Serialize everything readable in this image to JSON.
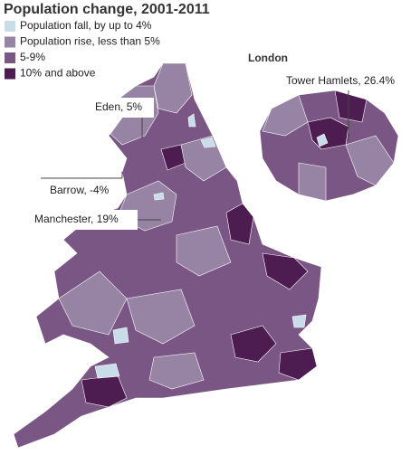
{
  "title": "Population change, 2001-2011",
  "legend": [
    {
      "label": "Population fall, by up to 4%",
      "color": "#c8dce9"
    },
    {
      "label": "Population rise, less than 5%",
      "color": "#9783a3"
    },
    {
      "label": "5-9%",
      "color": "#7a5685"
    },
    {
      "label": "10% and above",
      "color": "#4d1c51"
    }
  ],
  "inset_title": "London",
  "annotations": [
    {
      "label": "Eden, 5%"
    },
    {
      "label": "Barrow, -4%"
    },
    {
      "label": "Manchester, 19%"
    },
    {
      "label": "Tower Hamlets, 26.4%"
    }
  ]
}
